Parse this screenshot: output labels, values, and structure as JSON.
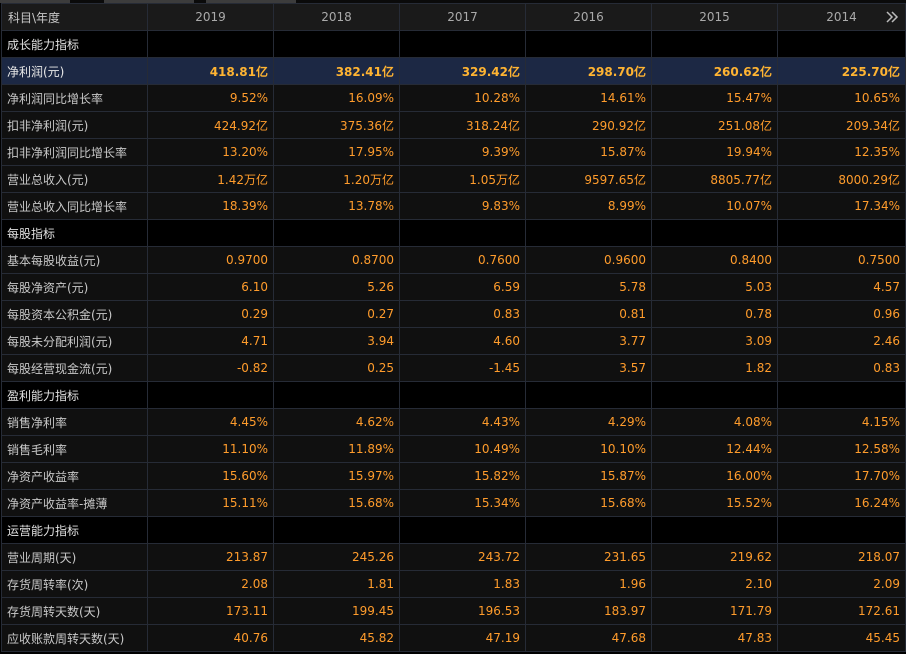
{
  "table": {
    "corner_label": "科目\\年度",
    "years": [
      "2019",
      "2018",
      "2017",
      "2016",
      "2015",
      "2014"
    ],
    "rows": [
      {
        "type": "section",
        "label": "成长能力指标"
      },
      {
        "type": "data",
        "highlight": true,
        "label": "净利润(元)",
        "values": [
          "418.81亿",
          "382.41亿",
          "329.42亿",
          "298.70亿",
          "260.62亿",
          "225.70亿"
        ]
      },
      {
        "type": "data",
        "label": "净利润同比增长率",
        "values": [
          "9.52%",
          "16.09%",
          "10.28%",
          "14.61%",
          "15.47%",
          "10.65%"
        ]
      },
      {
        "type": "data",
        "label": "扣非净利润(元)",
        "values": [
          "424.92亿",
          "375.36亿",
          "318.24亿",
          "290.92亿",
          "251.08亿",
          "209.34亿"
        ]
      },
      {
        "type": "data",
        "label": "扣非净利润同比增长率",
        "values": [
          "13.20%",
          "17.95%",
          "9.39%",
          "15.87%",
          "19.94%",
          "12.35%"
        ]
      },
      {
        "type": "data",
        "label": "营业总收入(元)",
        "values": [
          "1.42万亿",
          "1.20万亿",
          "1.05万亿",
          "9597.65亿",
          "8805.77亿",
          "8000.29亿"
        ]
      },
      {
        "type": "data",
        "label": "营业总收入同比增长率",
        "values": [
          "18.39%",
          "13.78%",
          "9.83%",
          "8.99%",
          "10.07%",
          "17.34%"
        ]
      },
      {
        "type": "section",
        "label": "每股指标"
      },
      {
        "type": "data",
        "label": "基本每股收益(元)",
        "values": [
          "0.9700",
          "0.8700",
          "0.7600",
          "0.9600",
          "0.8400",
          "0.7500"
        ]
      },
      {
        "type": "data",
        "label": "每股净资产(元)",
        "values": [
          "6.10",
          "5.26",
          "6.59",
          "5.78",
          "5.03",
          "4.57"
        ]
      },
      {
        "type": "data",
        "label": "每股资本公积金(元)",
        "values": [
          "0.29",
          "0.27",
          "0.83",
          "0.81",
          "0.78",
          "0.96"
        ]
      },
      {
        "type": "data",
        "label": "每股未分配利润(元)",
        "values": [
          "4.71",
          "3.94",
          "4.60",
          "3.77",
          "3.09",
          "2.46"
        ]
      },
      {
        "type": "data",
        "label": "每股经营现金流(元)",
        "values": [
          "-0.82",
          "0.25",
          "-1.45",
          "3.57",
          "1.82",
          "0.83"
        ]
      },
      {
        "type": "section",
        "label": "盈利能力指标"
      },
      {
        "type": "data",
        "label": "销售净利率",
        "values": [
          "4.45%",
          "4.62%",
          "4.43%",
          "4.29%",
          "4.08%",
          "4.15%"
        ]
      },
      {
        "type": "data",
        "label": "销售毛利率",
        "values": [
          "11.10%",
          "11.89%",
          "10.49%",
          "10.10%",
          "12.44%",
          "12.58%"
        ]
      },
      {
        "type": "data",
        "label": "净资产收益率",
        "values": [
          "15.60%",
          "15.97%",
          "15.82%",
          "15.87%",
          "16.00%",
          "17.70%"
        ]
      },
      {
        "type": "data",
        "label": "净资产收益率-摊薄",
        "values": [
          "15.11%",
          "15.68%",
          "15.34%",
          "15.68%",
          "15.52%",
          "16.24%"
        ]
      },
      {
        "type": "section",
        "label": "运营能力指标"
      },
      {
        "type": "data",
        "label": "营业周期(天)",
        "values": [
          "213.87",
          "245.26",
          "243.72",
          "231.65",
          "219.62",
          "218.07"
        ]
      },
      {
        "type": "data",
        "label": "存货周转率(次)",
        "values": [
          "2.08",
          "1.81",
          "1.83",
          "1.96",
          "2.10",
          "2.09"
        ]
      },
      {
        "type": "data",
        "label": "存货周转天数(天)",
        "values": [
          "173.11",
          "199.45",
          "196.53",
          "183.97",
          "171.79",
          "172.61"
        ]
      },
      {
        "type": "data",
        "label": "应收账款周转天数(天)",
        "values": [
          "40.76",
          "45.82",
          "47.19",
          "47.68",
          "47.83",
          "45.45"
        ]
      }
    ]
  },
  "icons": {
    "more_columns": "double-chevron-right-icon"
  },
  "colors": {
    "background": "#000000",
    "row_bg": "#101010",
    "grid": "#262b36",
    "label_text": "#c8c8c8",
    "value_text": "#ff9c2c",
    "highlight_row_bg": "#1c2844"
  }
}
